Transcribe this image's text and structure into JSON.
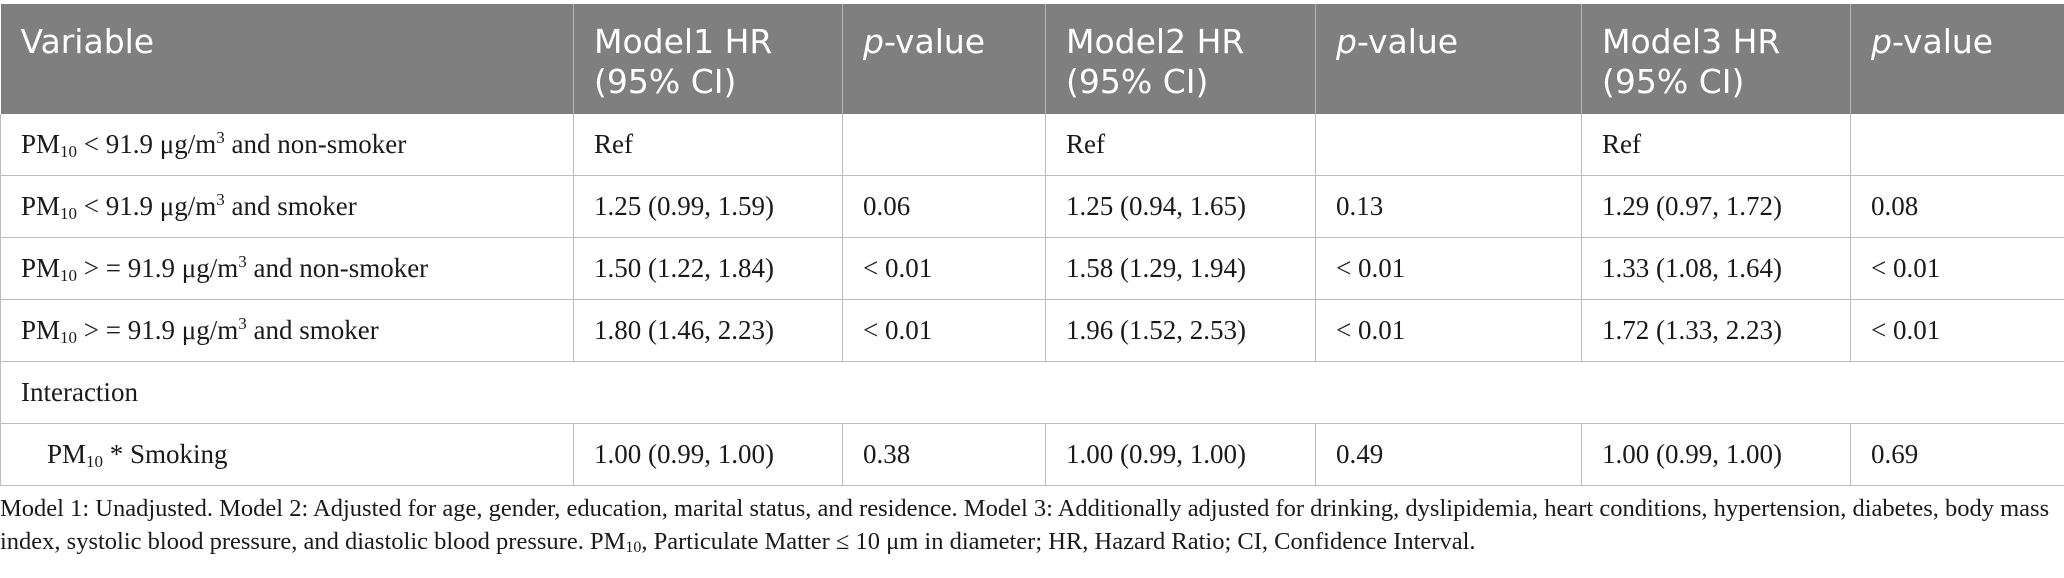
{
  "headers": {
    "variable": "Variable",
    "model1": "Model1 HR (95% CI)",
    "p_prefix": "p",
    "p_suffix": "-value",
    "model2": "Model2 HR (95% CI)",
    "model3": "Model3 HR (95% CI)"
  },
  "pm_prefix": "PM",
  "pm_sub": "10",
  "unit_sup": "3",
  "rows": [
    {
      "label_mid": " < 91.9 μg/m",
      "label_end": " and non-smoker",
      "m1": "Ref",
      "p1": "",
      "m2": "Ref",
      "p2": "",
      "m3": "Ref",
      "p3": ""
    },
    {
      "label_mid": " < 91.9 μg/m",
      "label_end": " and smoker",
      "m1": "1.25 (0.99, 1.59)",
      "p1": "0.06",
      "m2": "1.25 (0.94, 1.65)",
      "p2": "0.13",
      "m3": "1.29 (0.97, 1.72)",
      "p3": "0.08"
    },
    {
      "label_mid": " > = 91.9 μg/m",
      "label_end": " and non-smoker",
      "m1": "1.50 (1.22, 1.84)",
      "p1": "< 0.01",
      "m2": "1.58 (1.29, 1.94)",
      "p2": "< 0.01",
      "m3": "1.33 (1.08, 1.64)",
      "p3": "< 0.01"
    },
    {
      "label_mid": " > = 91.9 μg/m",
      "label_end": " and smoker",
      "m1": "1.80 (1.46, 2.23)",
      "p1": "< 0.01",
      "m2": "1.96 (1.52, 2.53)",
      "p2": "< 0.01",
      "m3": "1.72 (1.33, 2.23)",
      "p3": "< 0.01"
    }
  ],
  "interaction_label": "Interaction",
  "interaction_row": {
    "label_end": " * Smoking",
    "m1": "1.00 (0.99, 1.00)",
    "p1": "0.38",
    "m2": "1.00 (0.99, 1.00)",
    "p2": "0.49",
    "m3": "1.00 (0.99, 1.00)",
    "p3": "0.69"
  },
  "footnote": {
    "text_before": "Model 1: Unadjusted. Model 2: Adjusted for age, gender, education, marital status, and residence. Model 3: Additionally adjusted for drinking, dyslipidemia, heart conditions, hypertension, diabetes, body mass index, systolic blood pressure, and diastolic blood pressure. PM",
    "text_after": ", Particulate Matter ≤ 10 μm in diameter; HR, Hazard Ratio; CI, Confidence Interval."
  }
}
